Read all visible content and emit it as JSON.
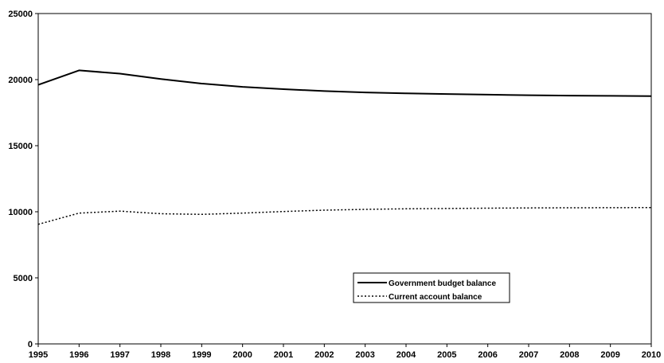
{
  "chart_data": {
    "type": "line",
    "x": [
      1995,
      1996,
      1997,
      1998,
      1999,
      2000,
      2001,
      2002,
      2003,
      2004,
      2005,
      2006,
      2007,
      2008,
      2009,
      2010
    ],
    "xlim": [
      1995,
      2010
    ],
    "ylim": [
      0,
      25000
    ],
    "yticks": [
      0,
      5000,
      10000,
      15000,
      20000,
      25000
    ],
    "grid": false,
    "legend_position": "lower-center-right",
    "series": [
      {
        "name": "Government budget balance",
        "style": "solid",
        "color": "#000000",
        "values": [
          19600,
          20700,
          20450,
          20050,
          19700,
          19450,
          19280,
          19130,
          19030,
          18960,
          18910,
          18860,
          18820,
          18790,
          18770,
          18750
        ]
      },
      {
        "name": "Current account balance",
        "style": "dotted",
        "color": "#000000",
        "values": [
          9050,
          9900,
          10050,
          9850,
          9800,
          9900,
          10020,
          10120,
          10180,
          10220,
          10250,
          10270,
          10290,
          10300,
          10310,
          10320
        ]
      }
    ]
  }
}
